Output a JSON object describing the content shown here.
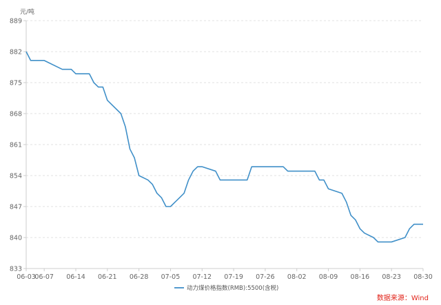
{
  "colors": {
    "line": "#3f8fc8",
    "grid": "#e2e2e2",
    "axis": "#cccccc",
    "source_text": "#e1251b"
  },
  "source": "数据来源：Wind",
  "chart_data": {
    "type": "line",
    "ylabel": "元/吨",
    "xlim": [
      "06-03",
      "08-30"
    ],
    "ylim": [
      833,
      889
    ],
    "yticks": [
      833,
      840,
      847,
      854,
      861,
      868,
      875,
      882,
      889
    ],
    "xticks": [
      "06-03",
      "06-07",
      "06-14",
      "06-21",
      "06-28",
      "07-05",
      "07-12",
      "07-19",
      "07-26",
      "08-02",
      "08-09",
      "08-16",
      "08-23",
      "08-30"
    ],
    "grid": true,
    "legend": "bottom-center",
    "x": [
      "06-03",
      "06-04",
      "06-07",
      "06-11",
      "06-13",
      "06-14",
      "06-17",
      "06-18",
      "06-19",
      "06-20",
      "06-21",
      "06-24",
      "06-25",
      "06-26",
      "06-27",
      "06-28",
      "06-30",
      "07-01",
      "07-02",
      "07-03",
      "07-04",
      "07-05",
      "07-06",
      "07-07",
      "07-08",
      "07-09",
      "07-10",
      "07-11",
      "07-12",
      "07-15",
      "07-16",
      "07-22",
      "07-23",
      "07-30",
      "07-31",
      "08-06",
      "08-07",
      "08-08",
      "08-09",
      "08-12",
      "08-13",
      "08-14",
      "08-15",
      "08-16",
      "08-17",
      "08-19",
      "08-20",
      "08-23",
      "08-26",
      "08-27",
      "08-28",
      "08-30"
    ],
    "series": [
      {
        "name": "动力煤价格指数(RMB):5500(含税)",
        "values": [
          882,
          880,
          880,
          878,
          878,
          877,
          877,
          875,
          874,
          874,
          871,
          868,
          865,
          860,
          858,
          854,
          853,
          852,
          850,
          849,
          847,
          847,
          848,
          849,
          850,
          853,
          855,
          856,
          856,
          855,
          853,
          853,
          856,
          856,
          855,
          855,
          853,
          853,
          851,
          850,
          848,
          845,
          844,
          842,
          841,
          840,
          839,
          839,
          840,
          842,
          843,
          843
        ]
      }
    ]
  }
}
